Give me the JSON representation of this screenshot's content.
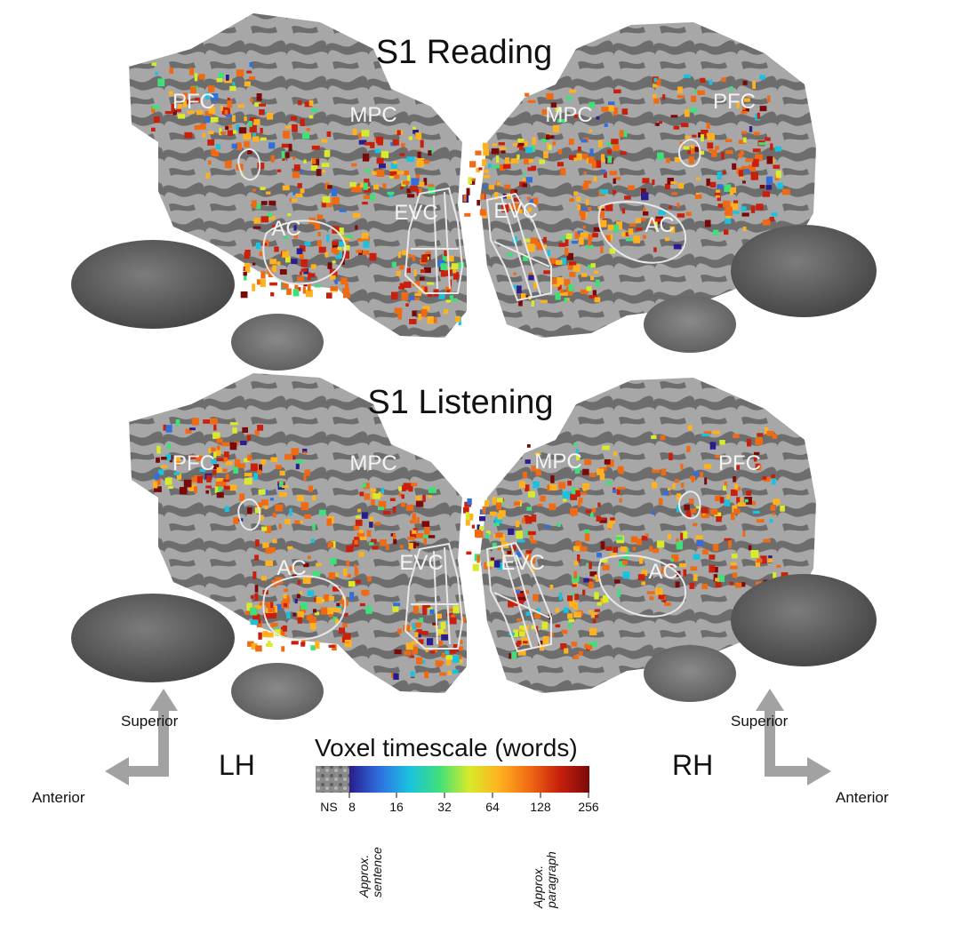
{
  "panels": [
    {
      "title": "S1 Reading"
    },
    {
      "title": "S1 Listening"
    }
  ],
  "roi_labels": {
    "pfc": "PFC",
    "mpc": "MPC",
    "ac": "AC",
    "evc": "EVC"
  },
  "hemispheres": {
    "left": "LH",
    "right": "RH"
  },
  "orientation": {
    "superior": "Superior",
    "anterior": "Anterior"
  },
  "colorbar": {
    "title": "Voxel timescale (words)",
    "ns_label": "NS",
    "ticks": [
      "8",
      "16",
      "32",
      "64",
      "128",
      "256"
    ],
    "approx_sentence": [
      "Approx.",
      "sentence"
    ],
    "approx_paragraph": [
      "Approx.",
      "paragraph"
    ],
    "colors": [
      "#2a1d8c",
      "#2f6fe0",
      "#19c2df",
      "#3fe07a",
      "#d8ea2a",
      "#ffb21e",
      "#f06a14",
      "#c8200c",
      "#7a0a0a"
    ]
  },
  "colors": {
    "cortex_light": "#a9a9a9",
    "cortex_dark": "#6a6a6a",
    "arrow": "#a2a2a2",
    "roi_outline": "#e8e8e8"
  }
}
